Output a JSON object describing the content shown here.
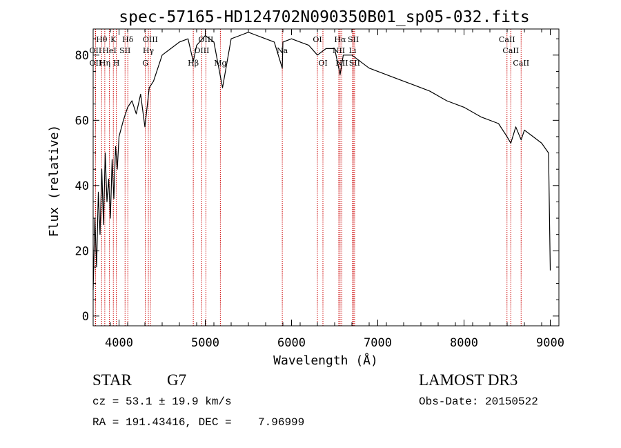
{
  "chart_data": {
    "type": "line",
    "title": "spec-57165-HD124702N090350B01_sp05-032.fits",
    "xlabel": "Wavelength (Å)",
    "ylabel": "Flux (relative)",
    "xlim": [
      3700,
      9100
    ],
    "ylim": [
      -3,
      88
    ],
    "xticks": [
      4000,
      5000,
      6000,
      7000,
      8000,
      9000
    ],
    "yticks": [
      0,
      20,
      40,
      60,
      80
    ],
    "grid": false,
    "series": [
      {
        "color": "#000000",
        "x": [
          3700,
          3720,
          3740,
          3760,
          3780,
          3800,
          3820,
          3840,
          3860,
          3880,
          3900,
          3920,
          3940,
          3960,
          3980,
          4000,
          4050,
          4100,
          4150,
          4200,
          4250,
          4300,
          4350,
          4400,
          4500,
          4600,
          4700,
          4800,
          4861,
          4900,
          5000,
          5100,
          5200,
          5300,
          5400,
          5500,
          5600,
          5700,
          5800,
          5893,
          5900,
          6000,
          6100,
          6200,
          6300,
          6400,
          6500,
          6563,
          6600,
          6700,
          6800,
          6900,
          7000,
          7200,
          7400,
          7600,
          7800,
          8000,
          8200,
          8400,
          8498,
          8542,
          8600,
          8662,
          8700,
          8800,
          8900,
          8980,
          9000
        ],
        "y": [
          8,
          30,
          15,
          38,
          25,
          45,
          28,
          50,
          35,
          42,
          30,
          48,
          36,
          52,
          45,
          55,
          60,
          64,
          66,
          62,
          68,
          58,
          70,
          72,
          80,
          82,
          84,
          85,
          78,
          83,
          86,
          84,
          70,
          85,
          86,
          87,
          86,
          85,
          84,
          76,
          84,
          85,
          84,
          83,
          80,
          82,
          82,
          74,
          80,
          80,
          78,
          76,
          75,
          73,
          71,
          69,
          66,
          64,
          61,
          59,
          55,
          53,
          58,
          54,
          57,
          55,
          53,
          50,
          14
        ]
      }
    ],
    "annotations": [
      {
        "label": "Hθ",
        "x": 3798,
        "row": 1
      },
      {
        "label": "OII",
        "x": 3727,
        "row": 2
      },
      {
        "label": "OII",
        "x": 3727,
        "row": 3
      },
      {
        "label": "Hη",
        "x": 3835,
        "row": 3
      },
      {
        "label": "K",
        "x": 3934,
        "row": 1
      },
      {
        "label": "HeI",
        "x": 3889,
        "row": 2
      },
      {
        "label": "H",
        "x": 3969,
        "row": 3
      },
      {
        "label": "SII",
        "x": 4070,
        "row": 2
      },
      {
        "label": "Hδ",
        "x": 4102,
        "row": 1
      },
      {
        "label": "OIII",
        "x": 4363,
        "row": 1
      },
      {
        "label": "Hγ",
        "x": 4340,
        "row": 2
      },
      {
        "label": "G",
        "x": 4305,
        "row": 3
      },
      {
        "label": "OIII",
        "x": 5007,
        "row": 1
      },
      {
        "label": "OIII",
        "x": 4959,
        "row": 2
      },
      {
        "label": "Hβ",
        "x": 4861,
        "row": 3
      },
      {
        "label": "Mg",
        "x": 5175,
        "row": 3
      },
      {
        "label": "Na",
        "x": 5893,
        "row": 2
      },
      {
        "label": "OI",
        "x": 6300,
        "row": 1
      },
      {
        "label": "OI",
        "x": 6364,
        "row": 3
      },
      {
        "label": "Hα",
        "x": 6563,
        "row": 1
      },
      {
        "label": "SII",
        "x": 6717,
        "row": 1
      },
      {
        "label": "NII",
        "x": 6548,
        "row": 2
      },
      {
        "label": "Li",
        "x": 6708,
        "row": 2
      },
      {
        "label": "NII",
        "x": 6583,
        "row": 3
      },
      {
        "label": "SII",
        "x": 6731,
        "row": 3
      },
      {
        "label": "CaII",
        "x": 8498,
        "row": 1
      },
      {
        "label": "CaII",
        "x": 8542,
        "row": 2
      },
      {
        "label": "CaII",
        "x": 8662,
        "row": 3
      }
    ]
  },
  "info": {
    "object_class": "STAR",
    "subclass": "G7",
    "survey": "LAMOST DR3",
    "redshift": "cz = 53.1 ± 19.9 km/s",
    "obs_date": "Obs-Date: 20150522",
    "coords": "RA = 191.43416, DEC =    7.96999"
  }
}
